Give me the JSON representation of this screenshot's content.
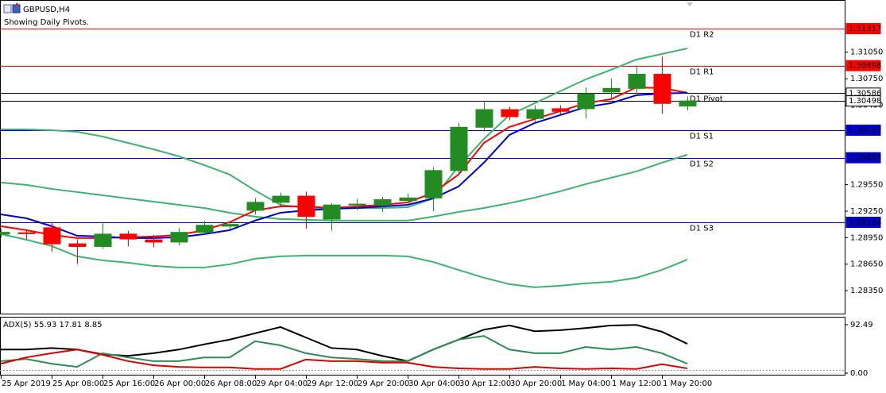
{
  "chart_data": [
    {
      "type": "candlestick",
      "title": "GBPUSD,H4",
      "subtitle": "Showing Daily Pivots.",
      "categories": [
        "25 Apr 2019",
        null,
        "25 Apr 08:00",
        null,
        "25 Apr 16:00",
        null,
        "26 Apr 00:00",
        null,
        "26 Apr 08:00",
        null,
        "29 Apr 04:00",
        null,
        "29 Apr 12:00",
        null,
        "29 Apr 20:00",
        null,
        "30 Apr 04:00",
        null,
        "30 Apr 12:00",
        null,
        "30 Apr 20:00",
        null,
        "1 May 04:00",
        null,
        "1 May 12:00",
        null,
        "1 May 20:00",
        null
      ],
      "open": [
        1.2899,
        1.29005,
        1.29062,
        1.2888,
        1.2885,
        1.2899,
        1.28925,
        1.289,
        1.2901,
        1.2908,
        1.2926,
        1.2935,
        1.2942,
        1.2916,
        1.2932,
        1.2932,
        1.2937,
        1.294,
        1.2971,
        1.302,
        1.304,
        1.303,
        1.3041,
        1.3041,
        1.306,
        1.3064,
        1.308,
        1.3044
      ],
      "high": [
        1.2905,
        1.2904,
        1.2912,
        1.2893,
        1.2912,
        1.2903,
        1.2898,
        1.2906,
        1.2914,
        1.2914,
        1.294,
        1.2946,
        1.2947,
        1.2934,
        1.2939,
        1.2941,
        1.2945,
        1.2975,
        1.3025,
        1.305,
        1.3043,
        1.3045,
        1.3045,
        1.3065,
        1.3075,
        1.309,
        1.31,
        1.3055
      ],
      "low": [
        1.2895,
        1.2893,
        1.2879,
        1.2865,
        1.2882,
        1.2885,
        1.2884,
        1.2886,
        1.2899,
        1.2904,
        1.2921,
        1.2931,
        1.2905,
        1.2903,
        1.2926,
        1.2924,
        1.2933,
        1.2925,
        1.2966,
        1.3015,
        1.3028,
        1.3026,
        1.3034,
        1.303,
        1.3052,
        1.3058,
        1.3035,
        1.3039
      ],
      "close": [
        1.2901,
        1.28995,
        1.2888,
        1.2885,
        1.2899,
        1.28935,
        1.289,
        1.2901,
        1.2909,
        1.291,
        1.2935,
        1.2942,
        1.2919,
        1.2932,
        1.2933,
        1.2938,
        1.294,
        1.2971,
        1.302,
        1.304,
        1.3032,
        1.304,
        1.3038,
        1.3058,
        1.3064,
        1.308,
        1.3047,
        1.30498
      ],
      "up_color": "#228b22",
      "down_color": "#ff0000",
      "lines": [
        {
          "color": "#3cb371",
          "values": [
            1.30176,
            1.30176,
            1.30167,
            1.30149,
            1.30095,
            1.30023,
            1.29951,
            1.29871,
            1.29772,
            1.29664,
            1.29484,
            1.29322,
            1.29286,
            1.29286,
            1.29286,
            1.29286,
            1.29295,
            1.29394,
            1.29754,
            1.30068,
            1.30338,
            1.30473,
            1.30608,
            1.30742,
            1.3085,
            1.30967,
            1.3103,
            1.31093
          ]
        },
        {
          "color": "#3cb371",
          "values": [
            1.29574,
            1.29547,
            1.29502,
            1.29466,
            1.2943,
            1.29394,
            1.29358,
            1.29322,
            1.29286,
            1.29232,
            1.29188,
            1.29161,
            1.29152,
            1.29143,
            1.29143,
            1.29143,
            1.29143,
            1.29188,
            1.29241,
            1.29286,
            1.2934,
            1.29403,
            1.29475,
            1.29556,
            1.29628,
            1.297,
            1.29799,
            1.29889
          ]
        },
        {
          "color": "#3cb371",
          "values": [
            1.2899,
            1.28927,
            1.28855,
            1.28738,
            1.28693,
            1.28666,
            1.2863,
            1.28612,
            1.28612,
            1.28648,
            1.28711,
            1.28738,
            1.28747,
            1.28747,
            1.28747,
            1.28747,
            1.28738,
            1.28675,
            1.28585,
            1.28496,
            1.28424,
            1.28388,
            1.28406,
            1.28433,
            1.28451,
            1.28496,
            1.28585,
            1.28702
          ]
        },
        {
          "color": "#ff0000",
          "values": [
            1.2908,
            1.29035,
            1.28981,
            1.28945,
            1.28945,
            1.28954,
            1.28963,
            1.28981,
            1.29035,
            1.29125,
            1.29259,
            1.29304,
            1.29304,
            1.29286,
            1.29304,
            1.29322,
            1.29349,
            1.29457,
            1.29664,
            1.30023,
            1.30203,
            1.30293,
            1.30383,
            1.30473,
            1.30518,
            1.30652,
            1.30643,
            1.3059
          ]
        },
        {
          "color": "#0000cd",
          "values": [
            1.29214,
            1.2917,
            1.2908,
            1.28972,
            1.28963,
            1.28945,
            1.28945,
            1.28954,
            1.2899,
            1.29035,
            1.29143,
            1.29232,
            1.29259,
            1.29277,
            1.29286,
            1.29304,
            1.29322,
            1.29394,
            1.29529,
            1.29799,
            1.30113,
            1.30248,
            1.30338,
            1.30428,
            1.30473,
            1.30563,
            1.30581,
            1.3059
          ]
        }
      ],
      "levels": [
        {
          "name": "D1 R2",
          "value": 1.31317,
          "color": "#ff0000"
        },
        {
          "name": "D1 R1",
          "value": 1.30898,
          "color": "#ff0000"
        },
        {
          "name": "D1 Pivot",
          "value": 1.30586,
          "color": "#000000"
        },
        {
          "value": 1.30498,
          "color": "#000000"
        },
        {
          "name": "D1 S1",
          "value": 1.30167,
          "color": "#0000cd"
        },
        {
          "name": "D1 S2",
          "value": 1.29855,
          "color": "#0000cd"
        },
        {
          "name": "D1 S3",
          "value": 1.29124,
          "color": "#0000cd"
        }
      ],
      "ylim": [
        1.2809,
        1.31641
      ],
      "yticks": [
        {
          "value": 1.3105,
          "label": "1.31050"
        },
        {
          "value": 1.3075,
          "label": "1.30750"
        },
        {
          "value": 1.3045,
          "label": "1.30450"
        },
        {
          "value": 1.2955,
          "label": "1.29550"
        },
        {
          "value": 1.2925,
          "label": "1.29250"
        },
        {
          "value": 1.2895,
          "label": "1.28950"
        },
        {
          "value": 1.2865,
          "label": "1.28650"
        },
        {
          "value": 1.2835,
          "label": "1.28350"
        }
      ]
    },
    {
      "type": "line",
      "title": "ADX(5) 55.93 17.81 8.85",
      "ylim": [
        0,
        100
      ],
      "yticks": [
        92.49,
        {
          "value": 0,
          "label": "0.00"
        }
      ],
      "series": [
        {
          "color": "#000000",
          "values": [
            45,
            45,
            48,
            45,
            36,
            33,
            38,
            45,
            55,
            64,
            76,
            88,
            68,
            48,
            45,
            33,
            23,
            45,
            64,
            83,
            91,
            80,
            82,
            86,
            91,
            92,
            79,
            56
          ]
        },
        {
          "color": "#2e8b57",
          "values": [
            23,
            27,
            18,
            12,
            38,
            30,
            23,
            23,
            30,
            30,
            61,
            53,
            38,
            30,
            27,
            23,
            23,
            45,
            64,
            71,
            45,
            38,
            38,
            50,
            45,
            50,
            38,
            18
          ]
        },
        {
          "color": "#dd0000",
          "values": [
            18,
            30,
            38,
            45,
            35,
            23,
            15,
            12,
            11,
            11,
            8,
            8,
            26,
            23,
            23,
            20,
            20,
            12,
            9,
            8,
            8,
            12,
            9,
            8,
            9,
            8,
            17,
            9
          ]
        }
      ]
    }
  ]
}
